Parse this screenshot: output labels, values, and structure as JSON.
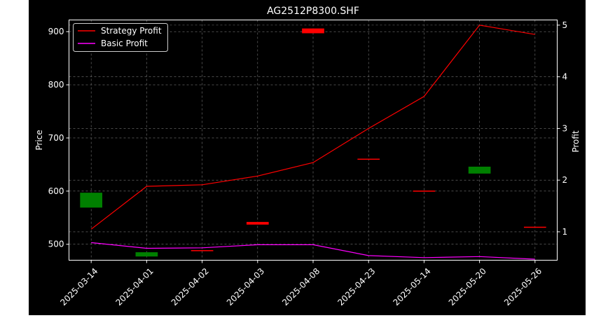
{
  "chart_data": {
    "type": "candlestick+line",
    "title": "AG2512P8300.SHF",
    "xlabel": "",
    "ylabel_left": "Price",
    "ylabel_right": "Profit",
    "categories": [
      "2025-03-14",
      "2025-04-01",
      "2025-04-02",
      "2025-04-03",
      "2025-04-08",
      "2025-04-23",
      "2025-05-14",
      "2025-05-20",
      "2025-05-26"
    ],
    "price_ylim": [
      470,
      922
    ],
    "price_yticks": [
      500,
      600,
      700,
      800,
      900
    ],
    "profit_ylim": [
      0.45,
      5.1
    ],
    "profit_yticks": [
      1,
      2,
      3,
      4,
      5
    ],
    "grid": true,
    "legend_position": "top-left",
    "colors": {
      "background": "#000000",
      "axes": "#ffffff",
      "grid": "#777777",
      "up": "#008000",
      "down": "#ff0000",
      "strategy": "#ff0000",
      "basic": "#ff00ff"
    },
    "candles": [
      {
        "date": "2025-03-14",
        "open": 569,
        "close": 597,
        "direction": "up"
      },
      {
        "date": "2025-04-01",
        "open": 477,
        "close": 485,
        "direction": "up"
      },
      {
        "date": "2025-04-02",
        "open": 489,
        "close": 487,
        "direction": "down"
      },
      {
        "date": "2025-04-03",
        "open": 542,
        "close": 537,
        "direction": "down"
      },
      {
        "date": "2025-04-08",
        "open": 906,
        "close": 897,
        "direction": "down"
      },
      {
        "date": "2025-04-23",
        "open": 661,
        "close": 659,
        "direction": "down"
      },
      {
        "date": "2025-05-14",
        "open": 601,
        "close": 599,
        "direction": "down"
      },
      {
        "date": "2025-05-20",
        "open": 633,
        "close": 646,
        "direction": "up"
      },
      {
        "date": "2025-05-26",
        "open": 533,
        "close": 531,
        "direction": "down"
      }
    ],
    "series": [
      {
        "name": "Strategy Profit",
        "color": "#ff0000",
        "values": [
          1.05,
          1.88,
          1.91,
          2.08,
          2.34,
          3.0,
          3.62,
          5.0,
          4.82
        ]
      },
      {
        "name": "Basic Profit",
        "color": "#ff00ff",
        "values": [
          0.79,
          0.68,
          0.69,
          0.75,
          0.75,
          0.54,
          0.5,
          0.52,
          0.47
        ]
      }
    ]
  }
}
